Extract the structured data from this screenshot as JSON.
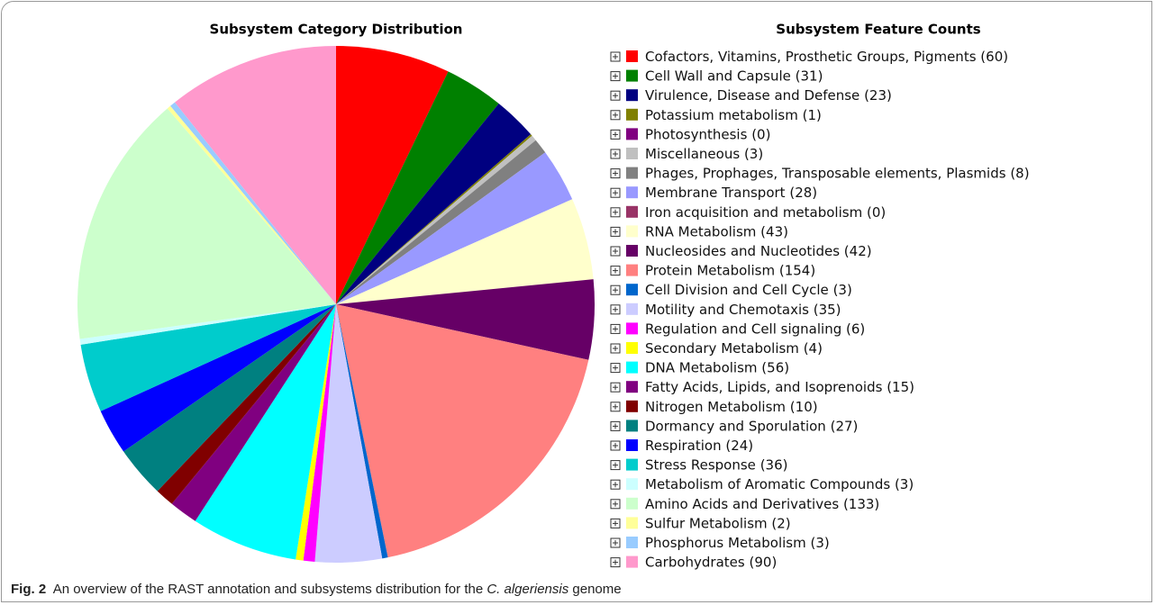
{
  "chart_data": {
    "type": "pie",
    "title": "Subsystem Category Distribution",
    "legend_title": "Subsystem Feature Counts",
    "categories": [
      "Cofactors, Vitamins, Prosthetic Groups, Pigments",
      "Cell Wall and Capsule",
      "Virulence, Disease and Defense",
      "Potassium metabolism",
      "Photosynthesis",
      "Miscellaneous",
      "Phages, Prophages, Transposable elements, Plasmids",
      "Membrane Transport",
      "Iron acquisition and metabolism",
      "RNA Metabolism",
      "Nucleosides and Nucleotides",
      "Protein Metabolism",
      "Cell Division and Cell Cycle",
      "Motility and Chemotaxis",
      "Regulation and Cell signaling",
      "Secondary Metabolism",
      "DNA Metabolism",
      "Fatty Acids, Lipids, and Isoprenoids",
      "Nitrogen Metabolism",
      "Dormancy and Sporulation",
      "Respiration",
      "Stress Response",
      "Metabolism of Aromatic Compounds",
      "Amino Acids and Derivatives",
      "Sulfur Metabolism",
      "Phosphorus Metabolism",
      "Carbohydrates"
    ],
    "values": [
      60,
      31,
      23,
      1,
      0,
      3,
      8,
      28,
      0,
      43,
      42,
      154,
      3,
      35,
      6,
      4,
      56,
      15,
      10,
      27,
      24,
      36,
      3,
      133,
      2,
      3,
      90
    ],
    "value_labels": [
      "(60)",
      "(31)",
      "(23)",
      "(1)",
      "(0)",
      "(3)",
      "(8)",
      "(28)",
      "(0)",
      "(43)",
      "(42)",
      "(154)",
      "(3)",
      "(35)",
      "(6)",
      "(4)",
      "(56)",
      "(15)",
      "(10)",
      "(27)",
      "(24)",
      "(36)",
      "(3)",
      "(133)",
      "(2)",
      "(3)",
      "(90)"
    ],
    "colors": [
      "#ff0000",
      "#008000",
      "#000080",
      "#808000",
      "#800080",
      "#c0c0c0",
      "#808080",
      "#9999ff",
      "#993366",
      "#ffffcc",
      "#660066",
      "#ff8080",
      "#0066cc",
      "#ccccff",
      "#ff00ff",
      "#ffff00",
      "#00ffff",
      "#800080",
      "#800000",
      "#008080",
      "#0000ff",
      "#00cccc",
      "#ccffff",
      "#ccffcc",
      "#ffff99",
      "#99ccff",
      "#ff99cc"
    ]
  },
  "caption": {
    "label": "Fig. 2",
    "text": "An overview of the RAST annotation and subsystems distribution for the",
    "italic": "C. algeriensis",
    "end": "genome"
  }
}
